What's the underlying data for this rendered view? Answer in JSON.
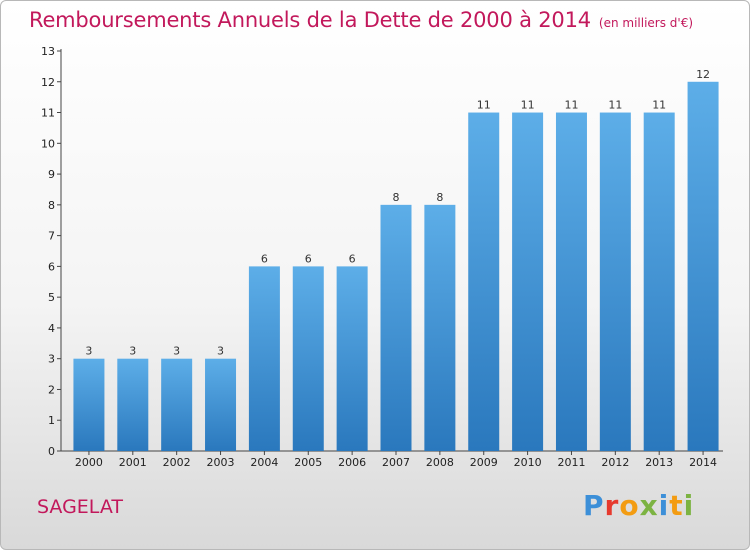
{
  "chart_data": {
    "type": "bar",
    "title": "Remboursements Annuels de la Dette de 2000 à 2014",
    "unit": "(en milliers d'€)",
    "categories": [
      "2000",
      "2001",
      "2002",
      "2003",
      "2004",
      "2005",
      "2006",
      "2007",
      "2008",
      "2009",
      "2010",
      "2011",
      "2012",
      "2013",
      "2014"
    ],
    "values": [
      3,
      3,
      3,
      3,
      6,
      6,
      6,
      8,
      8,
      11,
      11,
      11,
      11,
      11,
      12
    ],
    "ylim": [
      0,
      13
    ],
    "yticks": [
      0,
      1,
      2,
      3,
      4,
      5,
      6,
      7,
      8,
      9,
      10,
      11,
      12,
      13
    ],
    "grid": false,
    "bar_color": "#3d8fd6"
  },
  "commune": "SAGELAT",
  "logo": "Proxiti"
}
